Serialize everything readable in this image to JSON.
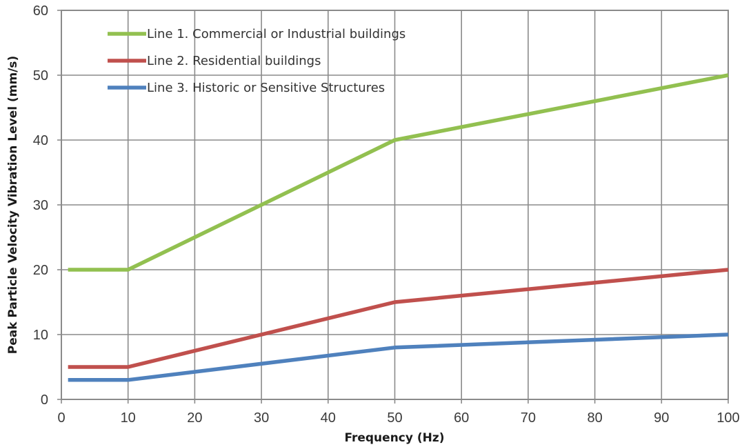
{
  "chart_data": {
    "type": "line",
    "xlabel": "Frequency (Hz)",
    "ylabel": "Peak Particle Velocity Vibration Level (mm/s)",
    "xlim": [
      0,
      100
    ],
    "ylim": [
      0,
      60
    ],
    "xticks": [
      0,
      10,
      20,
      30,
      40,
      50,
      60,
      70,
      80,
      90,
      100
    ],
    "yticks": [
      0,
      10,
      20,
      30,
      40,
      50,
      60
    ],
    "grid": true,
    "legend_position": "top-left",
    "series": [
      {
        "name": "Line 1. Commercial or Industrial buildings",
        "color": "#92c050",
        "x": [
          1,
          10,
          50,
          100
        ],
        "y": [
          20,
          20,
          40,
          50
        ]
      },
      {
        "name": "Line 2. Residential buildings",
        "color": "#c0504d",
        "x": [
          1,
          10,
          50,
          100
        ],
        "y": [
          5,
          5,
          15,
          20
        ]
      },
      {
        "name": "Line 3. Historic or Sensitive Structures",
        "color": "#4f81bd",
        "x": [
          1,
          10,
          50,
          100
        ],
        "y": [
          3,
          3,
          8,
          10
        ]
      }
    ]
  }
}
